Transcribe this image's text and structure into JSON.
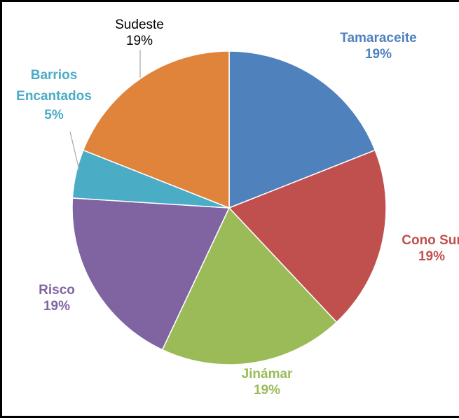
{
  "chart_data": {
    "type": "pie",
    "title": "",
    "slices": [
      {
        "label": "Tamaraceite",
        "percent_label": "19%",
        "value": 19,
        "color": "#4F81BD",
        "label_color": "#4F81BD"
      },
      {
        "label": "Cono Sur",
        "percent_label": "19%",
        "value": 19,
        "color": "#C0504D",
        "label_color": "#C0504D"
      },
      {
        "label": "Jinámar",
        "percent_label": "19%",
        "value": 19,
        "color": "#9BBB59",
        "label_color": "#9BBB59"
      },
      {
        "label": "Risco",
        "percent_label": "19%",
        "value": 19,
        "color": "#8064A2",
        "label_color": "#8064A2"
      },
      {
        "label": "Barrios Encantados",
        "percent_label": "5%",
        "value": 5,
        "color": "#4BACC6",
        "label_color": "#4BACC6"
      },
      {
        "label": "Sudeste",
        "percent_label": "19%",
        "value": 19,
        "color": "#E0843C",
        "label_color": "#000000"
      }
    ],
    "start_angle": "12 o'clock",
    "direction": "clockwise",
    "legend": "none"
  }
}
